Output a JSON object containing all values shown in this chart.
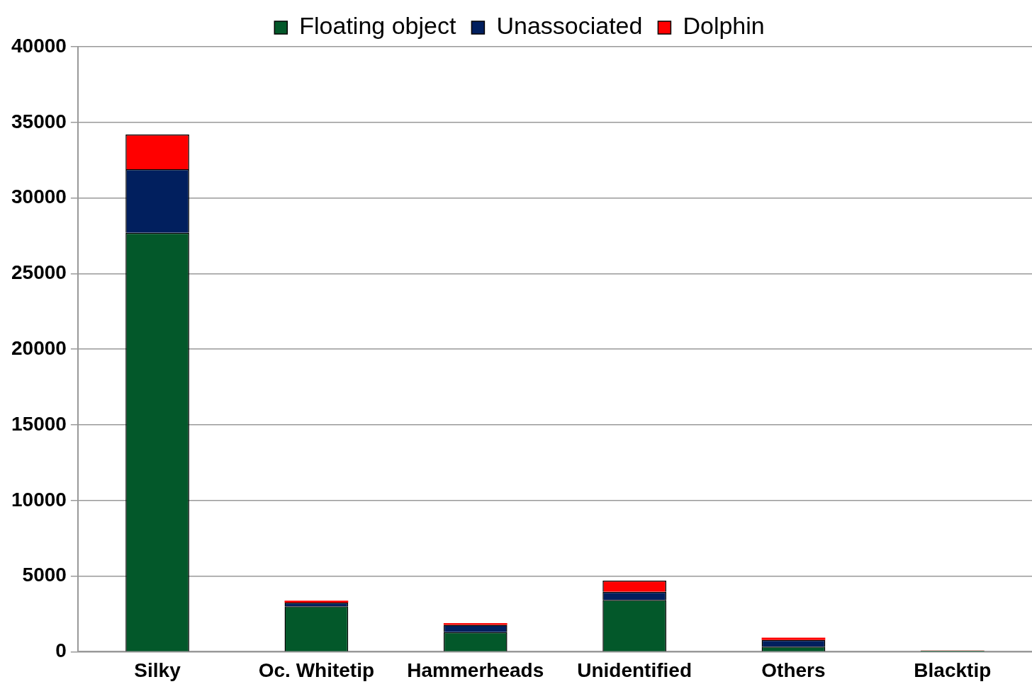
{
  "chart_data": {
    "type": "bar",
    "stacked": true,
    "categories": [
      "Silky",
      "Oc. Whitetip",
      "Hammerheads",
      "Unidentified",
      "Others",
      "Blacktip"
    ],
    "series": [
      {
        "name": "Floating object",
        "color": "#03582a",
        "values": [
          27700,
          3000,
          1300,
          3430,
          340,
          60
        ]
      },
      {
        "name": "Unassociated",
        "color": "#011f5e",
        "values": [
          4200,
          250,
          480,
          530,
          440,
          10
        ]
      },
      {
        "name": "Dolphin",
        "color": "#ff0000",
        "values": [
          2300,
          130,
          110,
          740,
          150,
          10
        ]
      }
    ],
    "ylim": [
      0,
      40000
    ],
    "yticks": [
      0,
      5000,
      10000,
      15000,
      20000,
      25000,
      30000,
      35000,
      40000
    ],
    "grid": "y",
    "legend": "top"
  }
}
